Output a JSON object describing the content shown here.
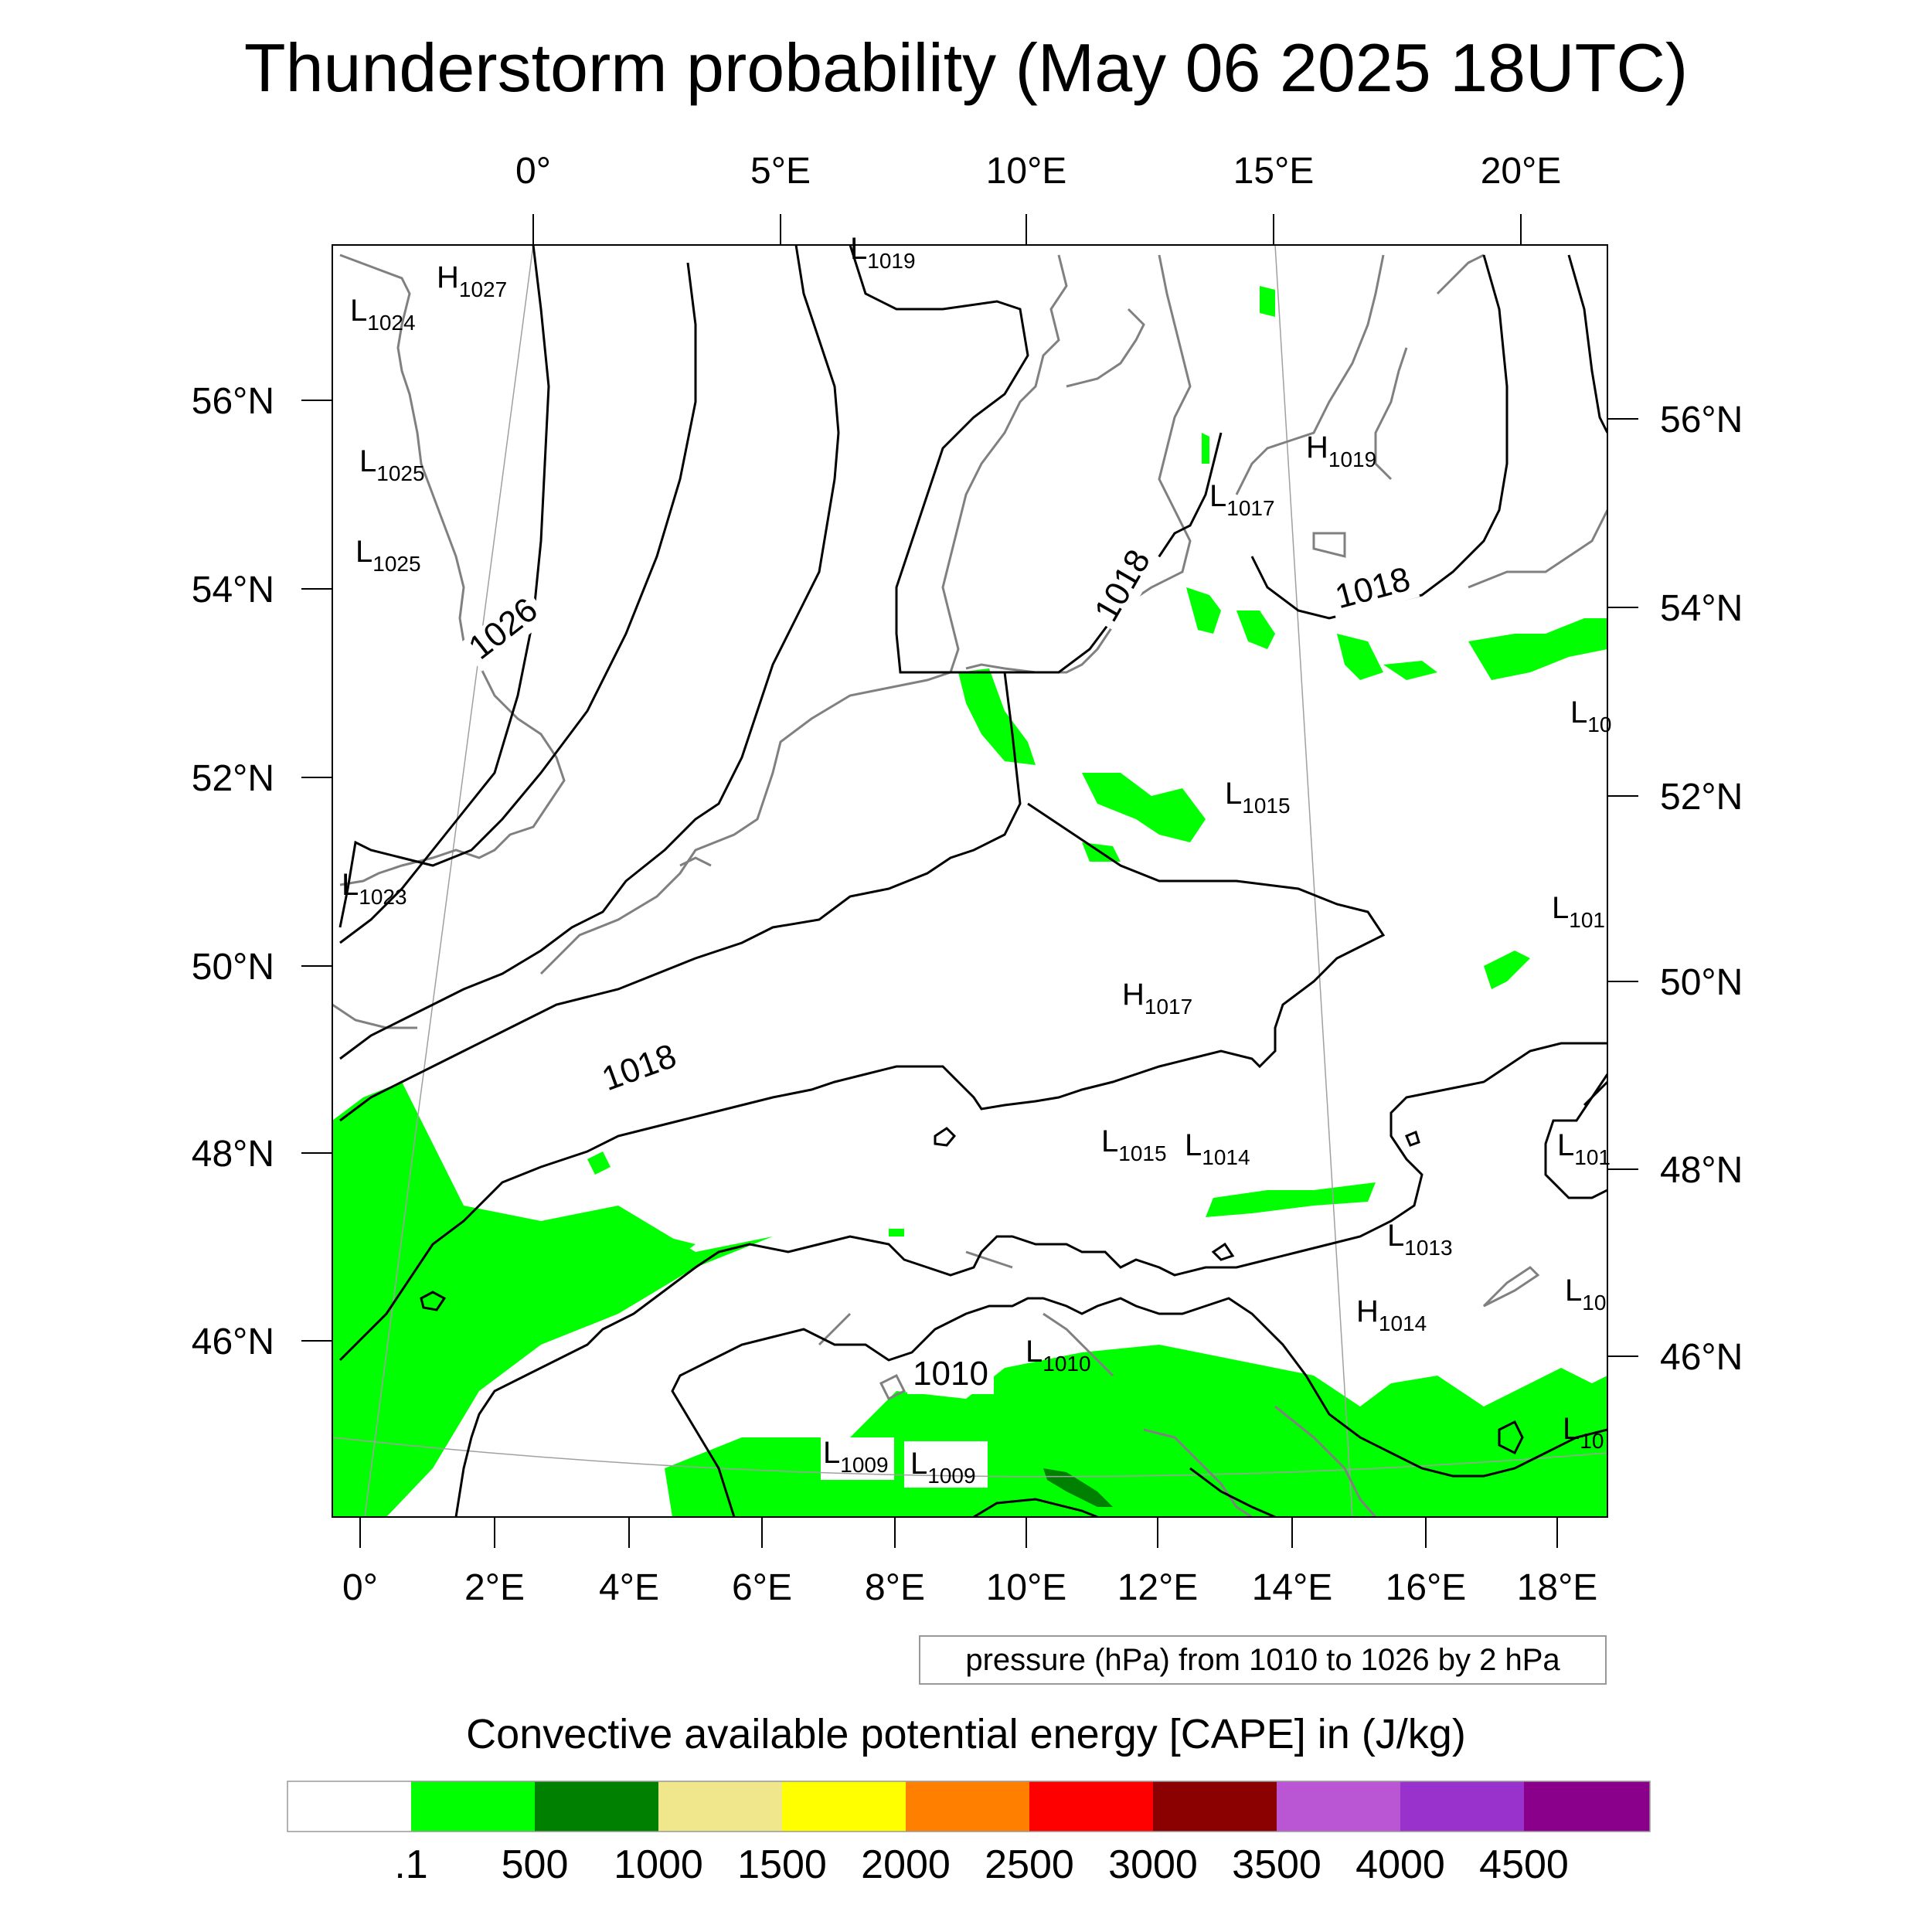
{
  "title": "Thunderstorm probability (May 06 2025 18UTC)",
  "top_longitudes": [
    "0°",
    "5°E",
    "10°E",
    "15°E",
    "20°E"
  ],
  "bottom_longitudes": [
    "0°",
    "2°E",
    "4°E",
    "6°E",
    "8°E",
    "10°E",
    "12°E",
    "14°E",
    "16°E",
    "18°E"
  ],
  "left_latitudes": [
    "56°N",
    "54°N",
    "52°N",
    "50°N",
    "48°N",
    "46°N"
  ],
  "right_latitudes": [
    "56°N",
    "54°N",
    "52°N",
    "50°N",
    "48°N",
    "46°N"
  ],
  "pressure_centers": [
    {
      "type": "L",
      "value": "1019"
    },
    {
      "type": "H",
      "value": "1027"
    },
    {
      "type": "L",
      "value": "1024"
    },
    {
      "type": "L",
      "value": "1025"
    },
    {
      "type": "L",
      "value": "1025"
    },
    {
      "type": "H",
      "value": "1019"
    },
    {
      "type": "L",
      "value": "1017"
    },
    {
      "type": "L",
      "value": "1015"
    },
    {
      "type": "L",
      "value": "1023"
    },
    {
      "type": "H",
      "value": "1017"
    },
    {
      "type": "L",
      "value": "1015"
    },
    {
      "type": "L",
      "value": "1014"
    },
    {
      "type": "L",
      "value": "1013"
    },
    {
      "type": "H",
      "value": "1014"
    },
    {
      "type": "L",
      "value": "1010"
    },
    {
      "type": "L",
      "value": "1009"
    },
    {
      "type": "L",
      "value": "1009"
    },
    {
      "type": "L",
      "value": "10"
    },
    {
      "type": "L",
      "value": "101"
    },
    {
      "type": "L",
      "value": "101"
    },
    {
      "type": "L",
      "value": "10"
    },
    {
      "type": "L",
      "value": "10"
    }
  ],
  "contour_labels": [
    "1026",
    "1018",
    "1018",
    "1018",
    "1010"
  ],
  "contour_info": "pressure (hPa) from 1010 to 1026 by 2 hPa",
  "colorbar": {
    "title": "Convective available potential energy [CAPE] in (J/kg)",
    "labels": [
      ".1",
      "500",
      "1000",
      "1500",
      "2000",
      "2500",
      "3000",
      "3500",
      "4000",
      "4500"
    ],
    "colors": [
      "#ffffff",
      "#00ff00",
      "#008000",
      "#f0e68c",
      "#ffff00",
      "#ff8000",
      "#ff0000",
      "#8b0000",
      "#ba55d3",
      "#9932cc",
      "#8b008b"
    ]
  }
}
